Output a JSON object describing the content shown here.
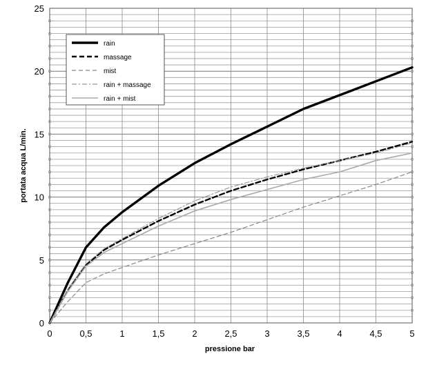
{
  "chart_data": {
    "type": "line",
    "xlabel": "pressione bar",
    "ylabel": "portata acqua  L/min.",
    "xlim": [
      0,
      5
    ],
    "ylim": [
      0,
      25
    ],
    "x_ticks": [
      "0",
      "0,5",
      "1",
      "1,5",
      "2",
      "2,5",
      "3",
      "3,5",
      "4",
      "4,5",
      "5"
    ],
    "y_ticks": [
      "0",
      "5",
      "10",
      "15",
      "20",
      "25"
    ],
    "grid": true,
    "legend_position": "top-left",
    "series": [
      {
        "name": "rain",
        "style": "solid-thick",
        "color": "#000000",
        "x": [
          0,
          0.25,
          0.5,
          0.75,
          1,
          1.5,
          2,
          2.5,
          3,
          3.5,
          4,
          4.5,
          5
        ],
        "y": [
          0,
          3.2,
          6,
          7.6,
          8.8,
          10.9,
          12.7,
          14.2,
          15.6,
          17,
          18.1,
          19.2,
          20.3
        ]
      },
      {
        "name": "massage",
        "style": "dashed-thick",
        "color": "#000000",
        "x": [
          0,
          0.25,
          0.5,
          0.75,
          1,
          1.5,
          2,
          2.5,
          3,
          3.5,
          4,
          4.5,
          5
        ],
        "y": [
          0,
          2.6,
          4.6,
          5.8,
          6.6,
          8.1,
          9.4,
          10.5,
          11.4,
          12.2,
          12.9,
          13.6,
          14.4
        ]
      },
      {
        "name": "mist",
        "style": "dashed-thin",
        "color": "#888888",
        "x": [
          0,
          0.25,
          0.5,
          0.75,
          1,
          1.5,
          2,
          2.5,
          3,
          3.5,
          4,
          4.5,
          5
        ],
        "y": [
          0,
          1.7,
          3.2,
          3.9,
          4.4,
          5.4,
          6.3,
          7.2,
          8.2,
          9.2,
          10.1,
          11,
          12
        ]
      },
      {
        "name": "rain + massage",
        "style": "dashdot-thin",
        "color": "#999999",
        "x": [
          0,
          0.25,
          0.5,
          0.75,
          1,
          1.5,
          2,
          2.5,
          3,
          3.5,
          4,
          4.5,
          5
        ],
        "y": [
          0,
          2.7,
          4.7,
          5.9,
          6.7,
          8.3,
          9.7,
          10.8,
          11.6,
          12.3,
          12.9,
          13.5,
          14.3
        ]
      },
      {
        "name": "rain + mist",
        "style": "solid-thin",
        "color": "#aaaaaa",
        "x": [
          0,
          0.25,
          0.5,
          0.75,
          1,
          1.5,
          2,
          2.5,
          3,
          3.5,
          4,
          4.5,
          5
        ],
        "y": [
          0,
          2.5,
          4.5,
          5.6,
          6.3,
          7.7,
          8.9,
          9.8,
          10.6,
          11.4,
          12,
          12.9,
          13.5
        ]
      }
    ]
  }
}
